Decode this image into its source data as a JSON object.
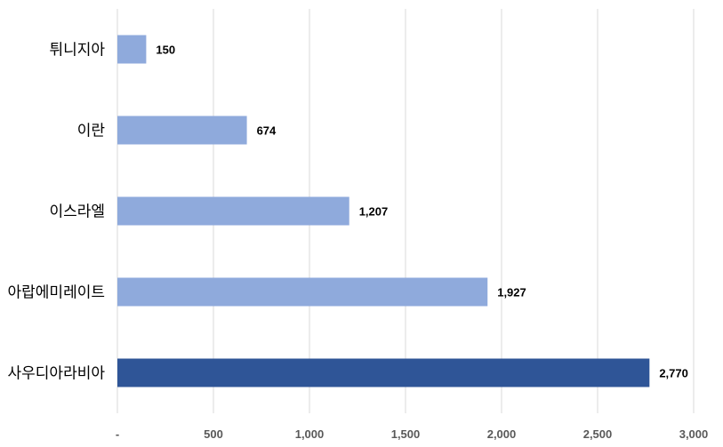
{
  "chart_data": {
    "type": "bar",
    "orientation": "horizontal",
    "title": "",
    "xlabel": "",
    "ylabel": "",
    "categories": [
      "튀니지아",
      "이란",
      "이스라엘",
      "아랍에미레이트",
      "사우디아라비아"
    ],
    "values": [
      150,
      674,
      1207,
      1927,
      2770
    ],
    "data_labels": [
      "150",
      "674",
      "1,207",
      "1,927",
      "2,770"
    ],
    "highlight_index": 4,
    "xlim": [
      0,
      3000
    ],
    "xticks": [
      0,
      500,
      1000,
      1500,
      2000,
      2500,
      3000
    ],
    "xtick_labels": [
      "-",
      "500",
      "1,000",
      "1,500",
      "2,000",
      "2,500",
      "3,000"
    ],
    "grid": "vertical",
    "legend": "none",
    "colors": {
      "bar": "#8faadc",
      "highlight": "#2f5597",
      "grid": "#d9d9d9"
    }
  }
}
